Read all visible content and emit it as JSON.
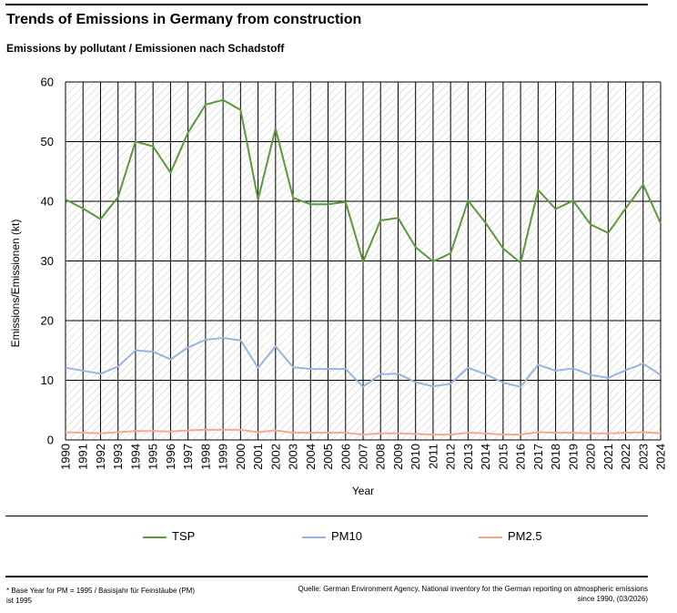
{
  "header": {
    "title": "Trends of Emissions in Germany from construction",
    "subtitle": "Emissions by pollutant / Emissionen nach Schadstoff"
  },
  "chart_data": {
    "type": "line",
    "title": "Trends of Emissions in Germany from construction",
    "subtitle": "Emissions by pollutant / Emissionen nach Schadstoff",
    "xlabel": "Year",
    "ylabel": "Emissions/Emissionen (kt)",
    "ylim": [
      0,
      60
    ],
    "yticks": [
      0,
      10,
      20,
      30,
      40,
      50,
      60
    ],
    "grid": true,
    "legend_position": "bottom",
    "categories": [
      "1990",
      "1991",
      "1992",
      "1993",
      "1994",
      "1995",
      "1996",
      "1997",
      "1998",
      "1999",
      "2000",
      "2001",
      "2002",
      "2003",
      "2004",
      "2005",
      "2006",
      "2007",
      "2008",
      "2009",
      "2010",
      "2011",
      "2012",
      "2013",
      "2014",
      "2015",
      "2016",
      "2017",
      "2018",
      "2019",
      "2020",
      "2021",
      "2022",
      "2023",
      "2024"
    ],
    "series": [
      {
        "name": "TSP",
        "color": "#5a9a3a",
        "values": [
          40.3,
          38.8,
          37.0,
          40.7,
          50.0,
          49.2,
          44.8,
          51.5,
          56.2,
          57.0,
          55.3,
          40.3,
          52.2,
          40.6,
          39.5,
          39.5,
          39.9,
          29.9,
          36.8,
          37.2,
          32.3,
          29.9,
          31.3,
          40.1,
          36.4,
          32.1,
          29.7,
          41.9,
          38.7,
          40.1,
          36.1,
          34.7,
          38.8,
          42.8,
          36.3
        ]
      },
      {
        "name": "PM10",
        "color": "#95b6e0",
        "values": [
          12.1,
          11.6,
          11.1,
          12.3,
          15.0,
          14.8,
          13.5,
          15.5,
          16.8,
          17.1,
          16.7,
          12.1,
          15.7,
          12.2,
          11.9,
          11.9,
          11.9,
          8.9,
          11.0,
          11.1,
          9.7,
          9.0,
          9.4,
          12.1,
          11.0,
          9.6,
          8.9,
          12.6,
          11.6,
          12.0,
          10.9,
          10.4,
          11.7,
          12.8,
          10.9
        ]
      },
      {
        "name": "PM2.5",
        "color": "#f4a988",
        "values": [
          1.3,
          1.2,
          1.1,
          1.3,
          1.5,
          1.5,
          1.4,
          1.6,
          1.7,
          1.7,
          1.7,
          1.3,
          1.6,
          1.2,
          1.2,
          1.2,
          1.2,
          0.9,
          1.1,
          1.1,
          1.0,
          0.9,
          0.9,
          1.2,
          1.1,
          0.9,
          0.9,
          1.3,
          1.2,
          1.2,
          1.1,
          1.1,
          1.2,
          1.3,
          1.1
        ]
      }
    ]
  },
  "legend": {
    "items": [
      {
        "label": "TSP",
        "color": "#5a9a3a"
      },
      {
        "label": "PM10",
        "color": "#95b6e0"
      },
      {
        "label": "PM2.5",
        "color": "#f4a988"
      }
    ]
  },
  "footer": {
    "footnote": "* Base Year for PM = 1995 / Basisjahr für Feinstäube (PM) ist 1995",
    "source_line1": "Quelle: German Environment Agency, National inventory for the German reporting on atmospheric emissions",
    "source_line2": "since 1990, (03/2026)"
  }
}
